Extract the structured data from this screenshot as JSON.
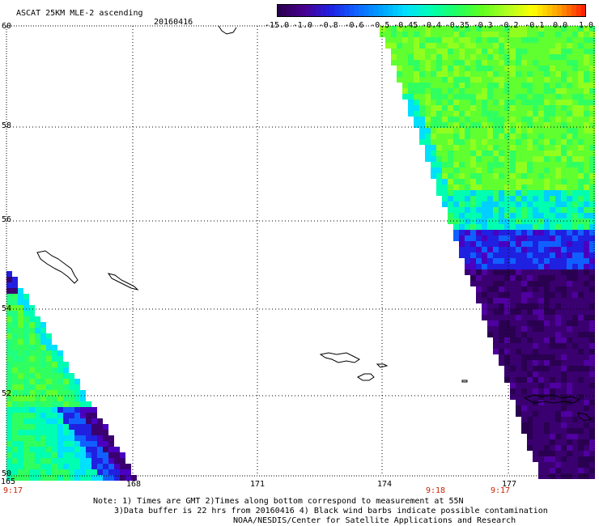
{
  "header": {
    "title": "ASCAT 25KM MLE-2 ascending",
    "date": "20160416"
  },
  "colorbar": {
    "tick_labels": [
      "-15.0",
      "-1.0",
      "-0.8",
      "-0.6",
      "-0.5",
      "-0.45",
      "-0.4",
      "-0.35",
      "-0.3",
      "-0.2",
      "-0.1",
      "0.0",
      "1.0"
    ],
    "colors": [
      "#2a0050",
      "#4a0090",
      "#2020e0",
      "#1060ff",
      "#00a0ff",
      "#00e0ff",
      "#00ffb0",
      "#20ff60",
      "#60ff20",
      "#b0ff20",
      "#ffff00",
      "#ffa000",
      "#ff2000"
    ]
  },
  "map": {
    "lat_labels": [
      "60",
      "58",
      "56",
      "54",
      "52",
      "50"
    ],
    "lon_labels": [
      "165",
      "168",
      "171",
      "174",
      "177"
    ],
    "times": [
      {
        "text": "9:17",
        "lon": "165"
      },
      {
        "text": "9:18",
        "lon": "175.3"
      },
      {
        "text": "9:17",
        "lon": "176.9"
      }
    ]
  },
  "notes": {
    "line1": "Note: 1) Times are GMT 2)Times along bottom correspond to measurement at 55N",
    "line2": "3)Data buffer is 22 hrs from 20160416 4) Black wind barbs indicate possible contamination",
    "line3": "NOAA/NESDIS/Center for Satellite Applications and Research"
  }
}
